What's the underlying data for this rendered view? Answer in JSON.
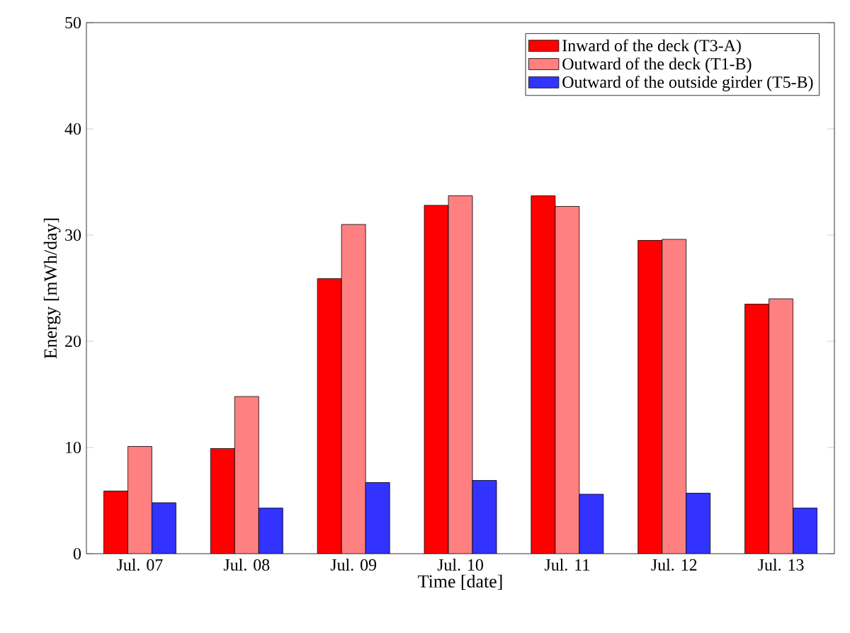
{
  "chart_data": {
    "type": "bar",
    "xlabel": "Time [date]",
    "ylabel": "Energy [mWh/day]",
    "categories": [
      "Jul. 07",
      "Jul. 08",
      "Jul. 09",
      "Jul. 10",
      "Jul. 11",
      "Jul. 12",
      "Jul. 13"
    ],
    "series": [
      {
        "name": "Inward of the deck (T3-A)",
        "color": "#ff0000",
        "values": [
          5.9,
          9.9,
          25.9,
          32.8,
          33.7,
          29.5,
          23.5
        ]
      },
      {
        "name": "Outward of the deck (T1-B)",
        "color": "#ff8080",
        "values": [
          10.1,
          14.8,
          31.0,
          33.7,
          32.7,
          29.6,
          24.0
        ]
      },
      {
        "name": "Outward of the outside girder (T5-B)",
        "color": "#3333ff",
        "values": [
          4.8,
          4.3,
          6.7,
          6.9,
          5.6,
          5.7,
          4.3
        ]
      }
    ],
    "ylim": [
      0,
      50
    ],
    "yticks": [
      0,
      10,
      20,
      30,
      40,
      50
    ],
    "grid": false,
    "legend": "top right"
  }
}
